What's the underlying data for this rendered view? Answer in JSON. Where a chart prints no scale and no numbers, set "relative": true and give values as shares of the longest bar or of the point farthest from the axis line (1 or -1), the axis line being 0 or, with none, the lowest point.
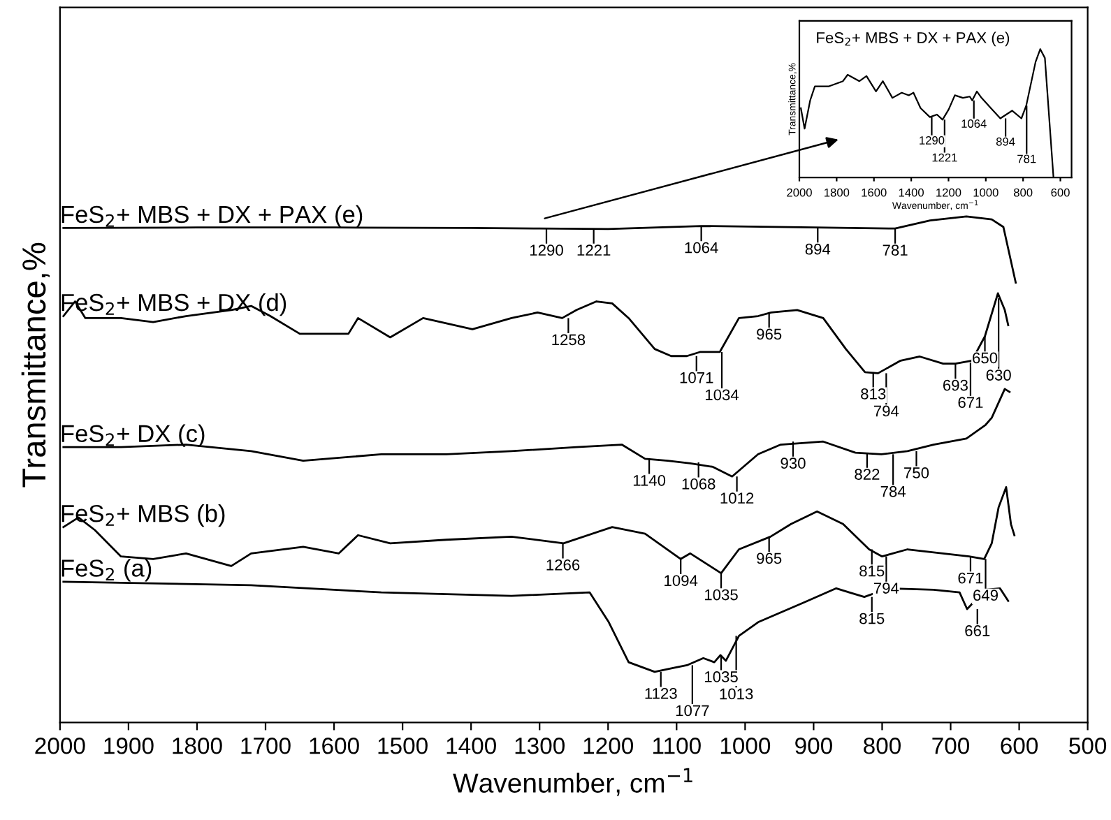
{
  "chart_data": [
    {
      "type": "line",
      "relative": true,
      "xlabel": "Wavenumber, cm$^{−1}$",
      "ylabel": "Transmittance,%",
      "xlim": [
        2000,
        500
      ],
      "xticks": [
        2000,
        1900,
        1800,
        1700,
        1600,
        1500,
        1400,
        1300,
        1200,
        1100,
        1000,
        900,
        800,
        700,
        600,
        500
      ],
      "grid": false,
      "series": [
        {
          "name": "FeS$_{2}$+ MBS + DX + PAX (e)",
          "color": "#000000",
          "x": [
            1995,
            1800,
            1600,
            1400,
            1300,
            1200,
            1064,
            900,
            781,
            730,
            677,
            640,
            623,
            605
          ],
          "values": [
            0.977,
            0.978,
            0.978,
            0.977,
            0.976,
            0.975,
            0.981,
            0.978,
            0.976,
            0.992,
            1.0,
            0.994,
            0.979,
            0.869
          ]
        },
        {
          "name": "FeS$_{2}$+ MBS + DX (d)",
          "color": "#000000",
          "x": [
            1995,
            1978,
            1963,
            1911,
            1864,
            1816,
            1750,
            1721,
            1693,
            1650,
            1579,
            1565,
            1518,
            1470,
            1398,
            1341,
            1303,
            1267,
            1246,
            1217,
            1194,
            1170,
            1132,
            1108,
            1085,
            1066,
            1037,
            1009,
            981,
            962,
            924,
            886,
            853,
            825,
            806,
            773,
            745,
            711,
            693,
            669,
            650,
            631,
            621,
            616
          ],
          "values": [
            0.803,
            0.832,
            0.799,
            0.799,
            0.791,
            0.803,
            0.815,
            0.823,
            0.803,
            0.768,
            0.768,
            0.799,
            0.761,
            0.799,
            0.777,
            0.799,
            0.81,
            0.799,
            0.815,
            0.832,
            0.828,
            0.799,
            0.738,
            0.724,
            0.724,
            0.732,
            0.732,
            0.799,
            0.803,
            0.81,
            0.815,
            0.799,
            0.738,
            0.692,
            0.69,
            0.715,
            0.723,
            0.709,
            0.709,
            0.715,
            0.763,
            0.848,
            0.815,
            0.785
          ]
        },
        {
          "name": "FeS$_{2}$+ DX (c)",
          "color": "#000000",
          "x": [
            1995,
            1911,
            1816,
            1721,
            1645,
            1531,
            1436,
            1341,
            1246,
            1180,
            1146,
            1113,
            1080,
            1047,
            1019,
            981,
            948,
            886,
            839,
            801,
            763,
            725,
            677,
            649,
            640,
            621,
            614
          ],
          "values": [
            0.544,
            0.544,
            0.549,
            0.536,
            0.517,
            0.53,
            0.53,
            0.536,
            0.544,
            0.549,
            0.521,
            0.517,
            0.512,
            0.505,
            0.486,
            0.53,
            0.549,
            0.555,
            0.533,
            0.53,
            0.536,
            0.549,
            0.561,
            0.588,
            0.602,
            0.659,
            0.653
          ]
        },
        {
          "name": "FeS$_{2}$+ MBS (b)",
          "color": "#000000",
          "x": [
            1995,
            1973,
            1949,
            1911,
            1864,
            1816,
            1750,
            1721,
            1645,
            1593,
            1565,
            1518,
            1436,
            1341,
            1265,
            1194,
            1146,
            1094,
            1080,
            1035,
            1009,
            963,
            933,
            895,
            857,
            819,
            800,
            763,
            673,
            651,
            640,
            630,
            619,
            612,
            607
          ],
          "values": [
            0.386,
            0.405,
            0.38,
            0.328,
            0.323,
            0.334,
            0.309,
            0.334,
            0.347,
            0.334,
            0.37,
            0.354,
            0.361,
            0.367,
            0.354,
            0.386,
            0.373,
            0.323,
            0.334,
            0.295,
            0.342,
            0.367,
            0.392,
            0.417,
            0.392,
            0.342,
            0.328,
            0.342,
            0.328,
            0.323,
            0.354,
            0.425,
            0.465,
            0.392,
            0.37
          ]
        },
        {
          "name": "FeS$_{2}$ (a)",
          "color": "#000000",
          "x": [
            1995,
            1911,
            1721,
            1531,
            1341,
            1227,
            1199,
            1170,
            1132,
            1104,
            1085,
            1061,
            1045,
            1036,
            1028,
            1009,
            981,
            914,
            867,
            848,
            826,
            791,
            725,
            687,
            676,
            649,
            628,
            616
          ],
          "values": [
            0.278,
            0.276,
            0.271,
            0.257,
            0.25,
            0.257,
            0.198,
            0.119,
            0.1,
            0.108,
            0.113,
            0.127,
            0.119,
            0.133,
            0.122,
            0.171,
            0.198,
            0.237,
            0.265,
            0.257,
            0.248,
            0.265,
            0.262,
            0.257,
            0.224,
            0.262,
            0.265,
            0.24
          ]
        }
      ],
      "annotations": [
        {
          "text": "1290",
          "x": 1290,
          "y": 0.976
        },
        {
          "text": "1221",
          "x": 1221,
          "y": 0.976
        },
        {
          "text": "1064",
          "x": 1064,
          "y": 0.981
        },
        {
          "text": "894",
          "x": 894,
          "y": 0.978
        },
        {
          "text": "781",
          "x": 781,
          "y": 0.976
        },
        {
          "text": "1258",
          "x": 1258,
          "y": 0.799
        },
        {
          "text": "1071",
          "x": 1071,
          "y": 0.724
        },
        {
          "text": "1034",
          "x": 1034,
          "y": 0.732
        },
        {
          "text": "965",
          "x": 965,
          "y": 0.81
        },
        {
          "text": "813",
          "x": 813,
          "y": 0.692
        },
        {
          "text": "794",
          "x": 794,
          "y": 0.69
        },
        {
          "text": "693",
          "x": 693,
          "y": 0.709
        },
        {
          "text": "671",
          "x": 671,
          "y": 0.711
        },
        {
          "text": "650",
          "x": 650,
          "y": 0.763
        },
        {
          "text": "630",
          "x": 630,
          "y": 0.838
        },
        {
          "text": "1140",
          "x": 1140,
          "y": 0.521
        },
        {
          "text": "1068",
          "x": 1068,
          "y": 0.514
        },
        {
          "text": "1012",
          "x": 1012,
          "y": 0.486
        },
        {
          "text": "930",
          "x": 930,
          "y": 0.555
        },
        {
          "text": "822",
          "x": 822,
          "y": 0.533
        },
        {
          "text": "784",
          "x": 784,
          "y": 0.53
        },
        {
          "text": "750",
          "x": 750,
          "y": 0.536
        },
        {
          "text": "1266",
          "x": 1266,
          "y": 0.354
        },
        {
          "text": "1094",
          "x": 1094,
          "y": 0.323
        },
        {
          "text": "1035",
          "x": 1035,
          "y": 0.295
        },
        {
          "text": "965",
          "x": 965,
          "y": 0.367
        },
        {
          "text": "815",
          "x": 815,
          "y": 0.342
        },
        {
          "text": "794",
          "x": 794,
          "y": 0.328
        },
        {
          "text": "671",
          "x": 671,
          "y": 0.328
        },
        {
          "text": "649",
          "x": 649,
          "y": 0.323
        },
        {
          "text": "1123",
          "x": 1123,
          "y": 0.1
        },
        {
          "text": "1077",
          "x": 1077,
          "y": 0.113
        },
        {
          "text": "1035",
          "x": 1035,
          "y": 0.133
        },
        {
          "text": "1013",
          "x": 1013,
          "y": 0.171
        },
        {
          "text": "815",
          "x": 815,
          "y": 0.248
        },
        {
          "text": "661",
          "x": 661,
          "y": 0.224
        }
      ]
    },
    {
      "type": "line",
      "relative": true,
      "title": "FeS$_{2}$+ MBS + DX + PAX (e)",
      "xlabel": "Wavenumber, cm$^{−1}$",
      "ylabel": "Transmittance,%",
      "xlim": [
        2000,
        540
      ],
      "xticks": [
        2000,
        1800,
        1600,
        1400,
        1200,
        1000,
        800,
        600
      ],
      "grid": false,
      "series": [
        {
          "color": "#000000",
          "x": [
            1992,
            1972,
            1942,
            1917,
            1841,
            1766,
            1741,
            1678,
            1640,
            1589,
            1552,
            1501,
            1451,
            1413,
            1388,
            1350,
            1300,
            1262,
            1232,
            1199,
            1166,
            1123,
            1086,
            1073,
            1048,
            1023,
            973,
            922,
            859,
            809,
            783,
            733,
            708,
            683,
            637
          ],
          "values": [
            0.54,
            0.38,
            0.6,
            0.71,
            0.71,
            0.75,
            0.8,
            0.75,
            0.79,
            0.67,
            0.75,
            0.62,
            0.66,
            0.64,
            0.66,
            0.54,
            0.47,
            0.49,
            0.45,
            0.53,
            0.64,
            0.62,
            0.63,
            0.6,
            0.67,
            0.62,
            0.54,
            0.46,
            0.52,
            0.46,
            0.56,
            0.9,
            1.0,
            0.93,
            0.0
          ]
        }
      ],
      "annotations": [
        {
          "text": "1290",
          "x": 1290,
          "y": 0.47
        },
        {
          "text": "1221",
          "x": 1221,
          "y": 0.45
        },
        {
          "text": "1064",
          "x": 1064,
          "y": 0.6
        },
        {
          "text": "894",
          "x": 894,
          "y": 0.46
        },
        {
          "text": "781",
          "x": 781,
          "y": 0.56
        }
      ]
    }
  ]
}
